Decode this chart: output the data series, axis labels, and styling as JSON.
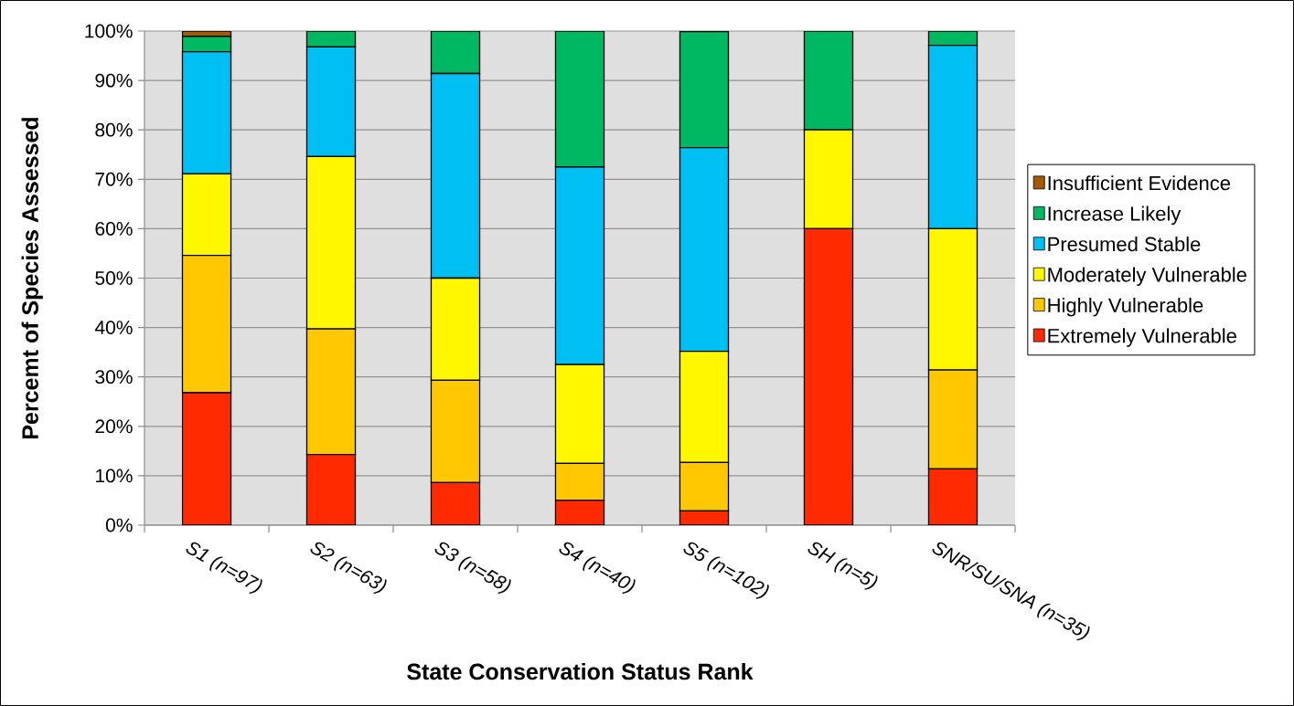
{
  "chart_data": {
    "type": "bar",
    "stacked": true,
    "xlabel": "State Conservation Status Rank",
    "ylabel": "Percemt of Species Assessed",
    "categories": [
      "S1 (n=97)",
      "S2 (n=63)",
      "S3 (n=58)",
      "S4 (n=40)",
      "S5 (n=102)",
      "SH (n=5)",
      "SNR/SU/SNA (n=35)"
    ],
    "series": [
      {
        "name": "Extremely Vulnerable",
        "color": "#ff2a00",
        "values": [
          26.8,
          14.3,
          8.6,
          5.0,
          2.9,
          60,
          11.4
        ]
      },
      {
        "name": "Highly Vulnerable",
        "color": "#ffc800",
        "values": [
          27.8,
          25.4,
          20.7,
          7.5,
          9.8,
          0,
          20.0
        ]
      },
      {
        "name": "Moderately Vulnerable",
        "color": "#fff700",
        "values": [
          16.5,
          34.9,
          20.7,
          20.0,
          22.5,
          20,
          28.6
        ]
      },
      {
        "name": "Presumed Stable",
        "color": "#00bff2",
        "values": [
          24.7,
          22.2,
          41.4,
          40.0,
          41.2,
          0,
          37.1
        ]
      },
      {
        "name": "Increase Likely",
        "color": "#00b862",
        "values": [
          3.1,
          3.2,
          8.6,
          27.5,
          23.5,
          20,
          2.9
        ]
      },
      {
        "name": "Insufficient Evidence",
        "color": "#a65a00",
        "values": [
          1.1,
          0,
          0,
          0,
          0,
          0,
          0
        ]
      }
    ],
    "ylim": [
      0,
      100
    ],
    "yticks": [
      {
        "value": 0,
        "label": "0%"
      },
      {
        "value": 10,
        "label": "10%"
      },
      {
        "value": 20,
        "label": "20%"
      },
      {
        "value": 30,
        "label": "30%"
      },
      {
        "value": 40,
        "label": "40%"
      },
      {
        "value": 50,
        "label": "50%"
      },
      {
        "value": 60,
        "label": "60%"
      },
      {
        "value": 70,
        "label": "70%"
      },
      {
        "value": 80,
        "label": "80%"
      },
      {
        "value": 90,
        "label": "90%"
      },
      {
        "value": 100,
        "label": "100%"
      }
    ],
    "grid": "y",
    "legend": "right"
  }
}
